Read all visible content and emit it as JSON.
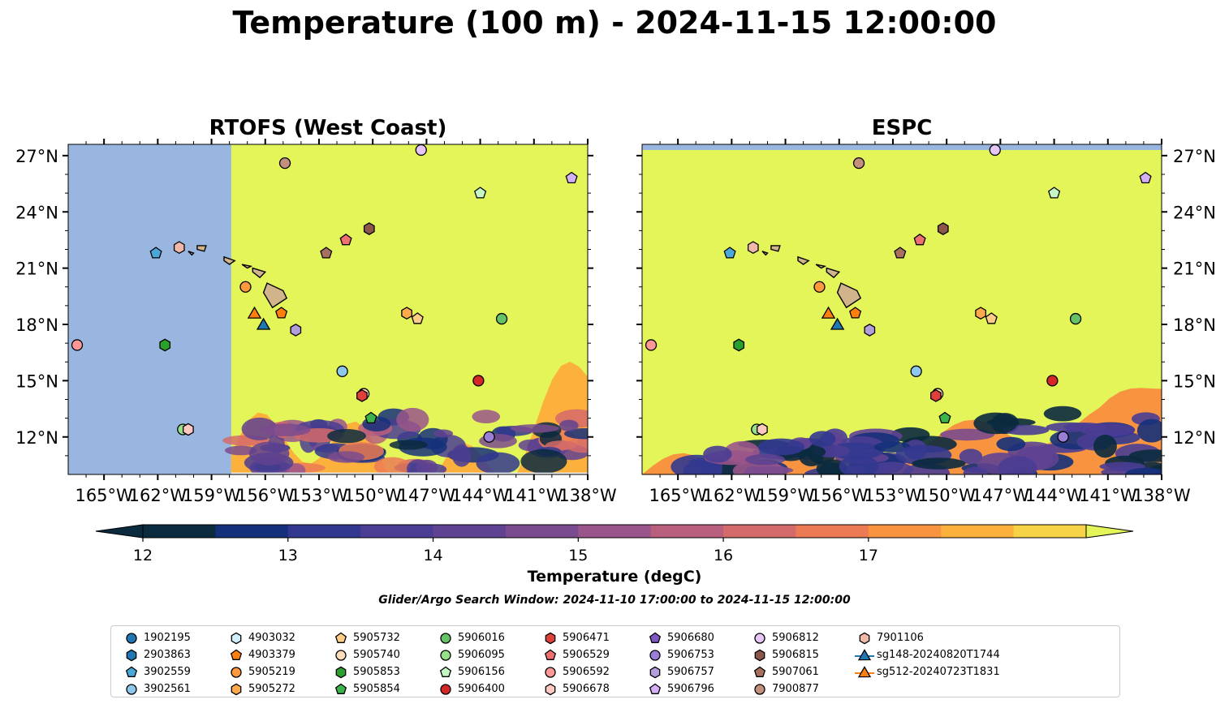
{
  "title": "Temperature (100 m) - 2024-11-15 12:00:00",
  "panels": [
    {
      "title": "RTOFS (West Coast)"
    },
    {
      "title": "ESPC"
    }
  ],
  "axes": {
    "lon_ticks": [
      "165°W",
      "162°W",
      "159°W",
      "156°W",
      "153°W",
      "150°W",
      "147°W",
      "144°W",
      "141°W",
      "138°W"
    ],
    "lat_ticks": [
      "27°N",
      "24°N",
      "21°N",
      "18°N",
      "15°N",
      "12°N"
    ]
  },
  "colorbar": {
    "label": "Temperature (degC)",
    "ticks": [
      "12",
      "13",
      "14",
      "15",
      "16",
      "17"
    ],
    "colors": [
      "#0a2a3e",
      "#15307a",
      "#32388f",
      "#4a3d93",
      "#5f4291",
      "#7a4b8e",
      "#9a558a",
      "#b85f7d",
      "#d56a6a",
      "#ec7b55",
      "#f89440",
      "#fbb13c",
      "#f6d246"
    ],
    "extend_low": "#0a2a3e",
    "extend_high": "#e4f55a"
  },
  "search_window": "Glider/Argo Search Window: 2024-11-10 17:00:00 to 2024-11-15 12:00:00",
  "chart_data": {
    "type": "map",
    "variable": "Temperature (100 m)",
    "units": "degC",
    "lon_range": [
      -167,
      -138
    ],
    "lat_range": [
      10,
      27.6
    ],
    "masked_color": "#98b6e0",
    "land_color": "#d2b48c",
    "field_summary": "Most of the domain is at or above 17.5 degC; cooler water (12-17 degC) appears south of about 15°N. RTOFS (West Coast) has no data west of ~157.5°W.",
    "observations": [
      {
        "id": "1902195",
        "marker": "circle",
        "color": "#1f77b4",
        "lon": null,
        "lat": null
      },
      {
        "id": "2903863",
        "marker": "hexagon",
        "color": "#1f77b4",
        "lon": null,
        "lat": null
      },
      {
        "id": "3902559",
        "marker": "pentagon",
        "color": "#4aa8d8",
        "lon": -162.1,
        "lat": 21.8
      },
      {
        "id": "3902561",
        "marker": "circle",
        "color": "#8dc8ec",
        "lon": -151.7,
        "lat": 15.5
      },
      {
        "id": "4903032",
        "marker": "hexagon",
        "color": "#cfeefe",
        "lon": null,
        "lat": null
      },
      {
        "id": "4903379",
        "marker": "pentagon",
        "color": "#ff7f0e",
        "lon": -155.1,
        "lat": 18.6
      },
      {
        "id": "5905219",
        "marker": "circle",
        "color": "#ff9a3c",
        "lon": -157.1,
        "lat": 20.0
      },
      {
        "id": "5905272",
        "marker": "hexagon",
        "color": "#ffa94d",
        "lon": -148.1,
        "lat": 18.6
      },
      {
        "id": "5905732",
        "marker": "pentagon",
        "color": "#ffcc88",
        "lon": -147.5,
        "lat": 18.3
      },
      {
        "id": "5905740",
        "marker": "circle",
        "color": "#ffddbb",
        "lon": -150.5,
        "lat": 14.3
      },
      {
        "id": "5905853",
        "marker": "hexagon",
        "color": "#2ca02c",
        "lon": -161.6,
        "lat": 16.9
      },
      {
        "id": "5905854",
        "marker": "pentagon",
        "color": "#3cb44b",
        "lon": -150.1,
        "lat": 13.0
      },
      {
        "id": "5906016",
        "marker": "circle",
        "color": "#66c266",
        "lon": -142.8,
        "lat": 18.3
      },
      {
        "id": "5906095",
        "marker": "circle",
        "color": "#98df8a",
        "lon": -160.6,
        "lat": 12.4
      },
      {
        "id": "5906156",
        "marker": "pentagon",
        "color": "#c5f7c5",
        "lon": -144.0,
        "lat": 25.0
      },
      {
        "id": "5906400",
        "marker": "circle",
        "color": "#d62728",
        "lon": -144.1,
        "lat": 15.0
      },
      {
        "id": "5906471",
        "marker": "hexagon",
        "color": "#e0403a",
        "lon": -150.6,
        "lat": 14.2
      },
      {
        "id": "5906529",
        "marker": "pentagon",
        "color": "#f07070",
        "lon": -151.5,
        "lat": 22.5
      },
      {
        "id": "5906592",
        "marker": "circle",
        "color": "#ff9896",
        "lon": -166.5,
        "lat": 16.9
      },
      {
        "id": "5906678",
        "marker": "hexagon",
        "color": "#ffc8c0",
        "lon": -160.3,
        "lat": 12.4
      },
      {
        "id": "5906680",
        "marker": "pentagon",
        "color": "#7e57c2",
        "lon": null,
        "lat": null
      },
      {
        "id": "5906753",
        "marker": "circle",
        "color": "#9b7ed6",
        "lon": -143.5,
        "lat": 12.0
      },
      {
        "id": "5906757",
        "marker": "hexagon",
        "color": "#b39ddb",
        "lon": -154.3,
        "lat": 17.7
      },
      {
        "id": "5906796",
        "marker": "pentagon",
        "color": "#d5b0f5",
        "lon": -138.9,
        "lat": 25.8
      },
      {
        "id": "5906812",
        "marker": "circle",
        "color": "#e6c6f7",
        "lon": -147.3,
        "lat": 27.3
      },
      {
        "id": "5906815",
        "marker": "hexagon",
        "color": "#8c564b",
        "lon": -150.2,
        "lat": 23.1
      },
      {
        "id": "5907061",
        "marker": "pentagon",
        "color": "#a8705e",
        "lon": -152.6,
        "lat": 21.8
      },
      {
        "id": "7900877",
        "marker": "circle",
        "color": "#c4907e",
        "lon": -154.9,
        "lat": 26.6
      },
      {
        "id": "7901106",
        "marker": "hexagon",
        "color": "#f0b8a8",
        "lon": -160.8,
        "lat": 22.1
      },
      {
        "id": "sg148-20240820T1744",
        "marker": "triangle",
        "color": "#1f77b4",
        "lon": -156.1,
        "lat": 18.0
      },
      {
        "id": "sg512-20240723T1831",
        "marker": "triangle",
        "color": "#ff7f0e",
        "lon": -156.6,
        "lat": 18.6
      }
    ]
  }
}
